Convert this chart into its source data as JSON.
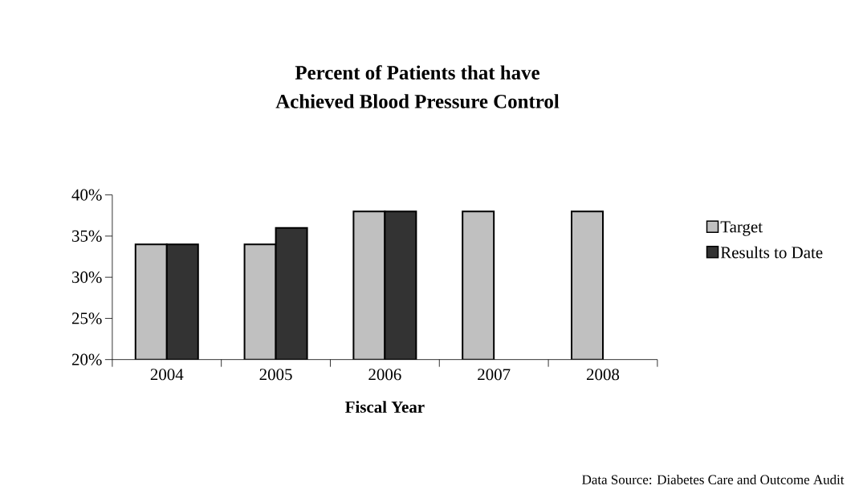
{
  "chart_data": {
    "type": "bar",
    "title": "Percent of Patients that have\nAchieved Blood Pressure Control",
    "xlabel": "Fiscal Year",
    "annotations": [
      "Data Source: Diabetes Care and Outcome Audit"
    ],
    "categories": [
      "2004",
      "2005",
      "2006",
      "2007",
      "2008"
    ],
    "series": [
      {
        "name": "Target",
        "color": "#c0c0c0",
        "values": [
          34,
          34,
          38,
          38,
          38
        ]
      },
      {
        "name": "Results to Date",
        "color": "#333333",
        "values": [
          34,
          36,
          38,
          null,
          null
        ]
      }
    ],
    "ylim": [
      20,
      40
    ],
    "yticks": [
      {
        "value": 20,
        "label": "20%"
      },
      {
        "value": 25,
        "label": "25%"
      },
      {
        "value": 30,
        "label": "30%"
      },
      {
        "value": 35,
        "label": "35%"
      },
      {
        "value": 40,
        "label": "40%"
      }
    ],
    "grid": false,
    "legend": "right"
  }
}
